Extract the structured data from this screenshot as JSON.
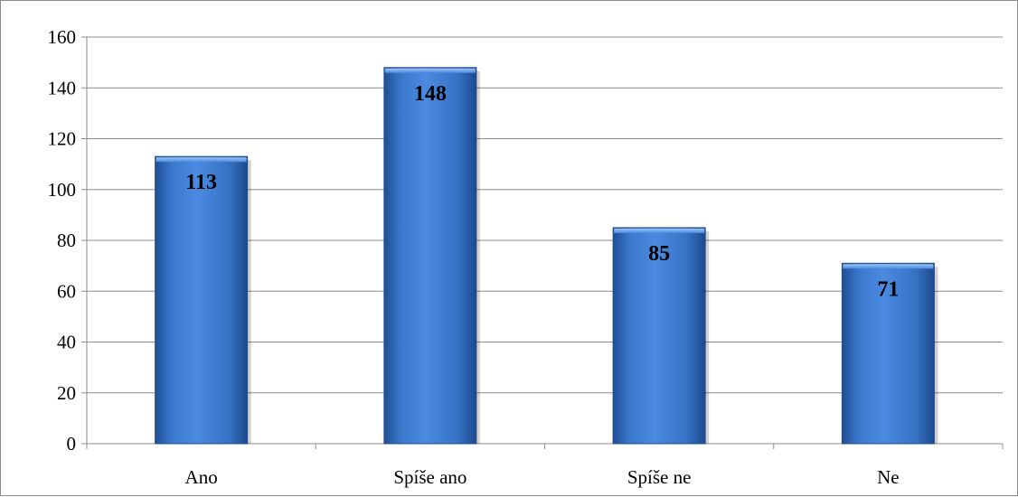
{
  "chart_data": {
    "type": "bar",
    "categories": [
      "Ano",
      "Spíše ano",
      "Spíše ne",
      "Ne"
    ],
    "values": [
      113,
      148,
      85,
      71
    ],
    "data_labels": [
      "113",
      "148",
      "85",
      "71"
    ],
    "title": "",
    "xlabel": "",
    "ylabel": "",
    "ylim": [
      0,
      160
    ],
    "yticks": [
      0,
      20,
      40,
      60,
      80,
      100,
      120,
      140,
      160
    ],
    "ytick_labels": [
      "0",
      "20",
      "40",
      "60",
      "80",
      "100",
      "120",
      "140",
      "160"
    ],
    "grid": true,
    "legend": "none",
    "colors": {
      "bar": "#3f7fd2",
      "bar_dark": "#1f4f94",
      "grid": "#8c8c8c"
    }
  }
}
